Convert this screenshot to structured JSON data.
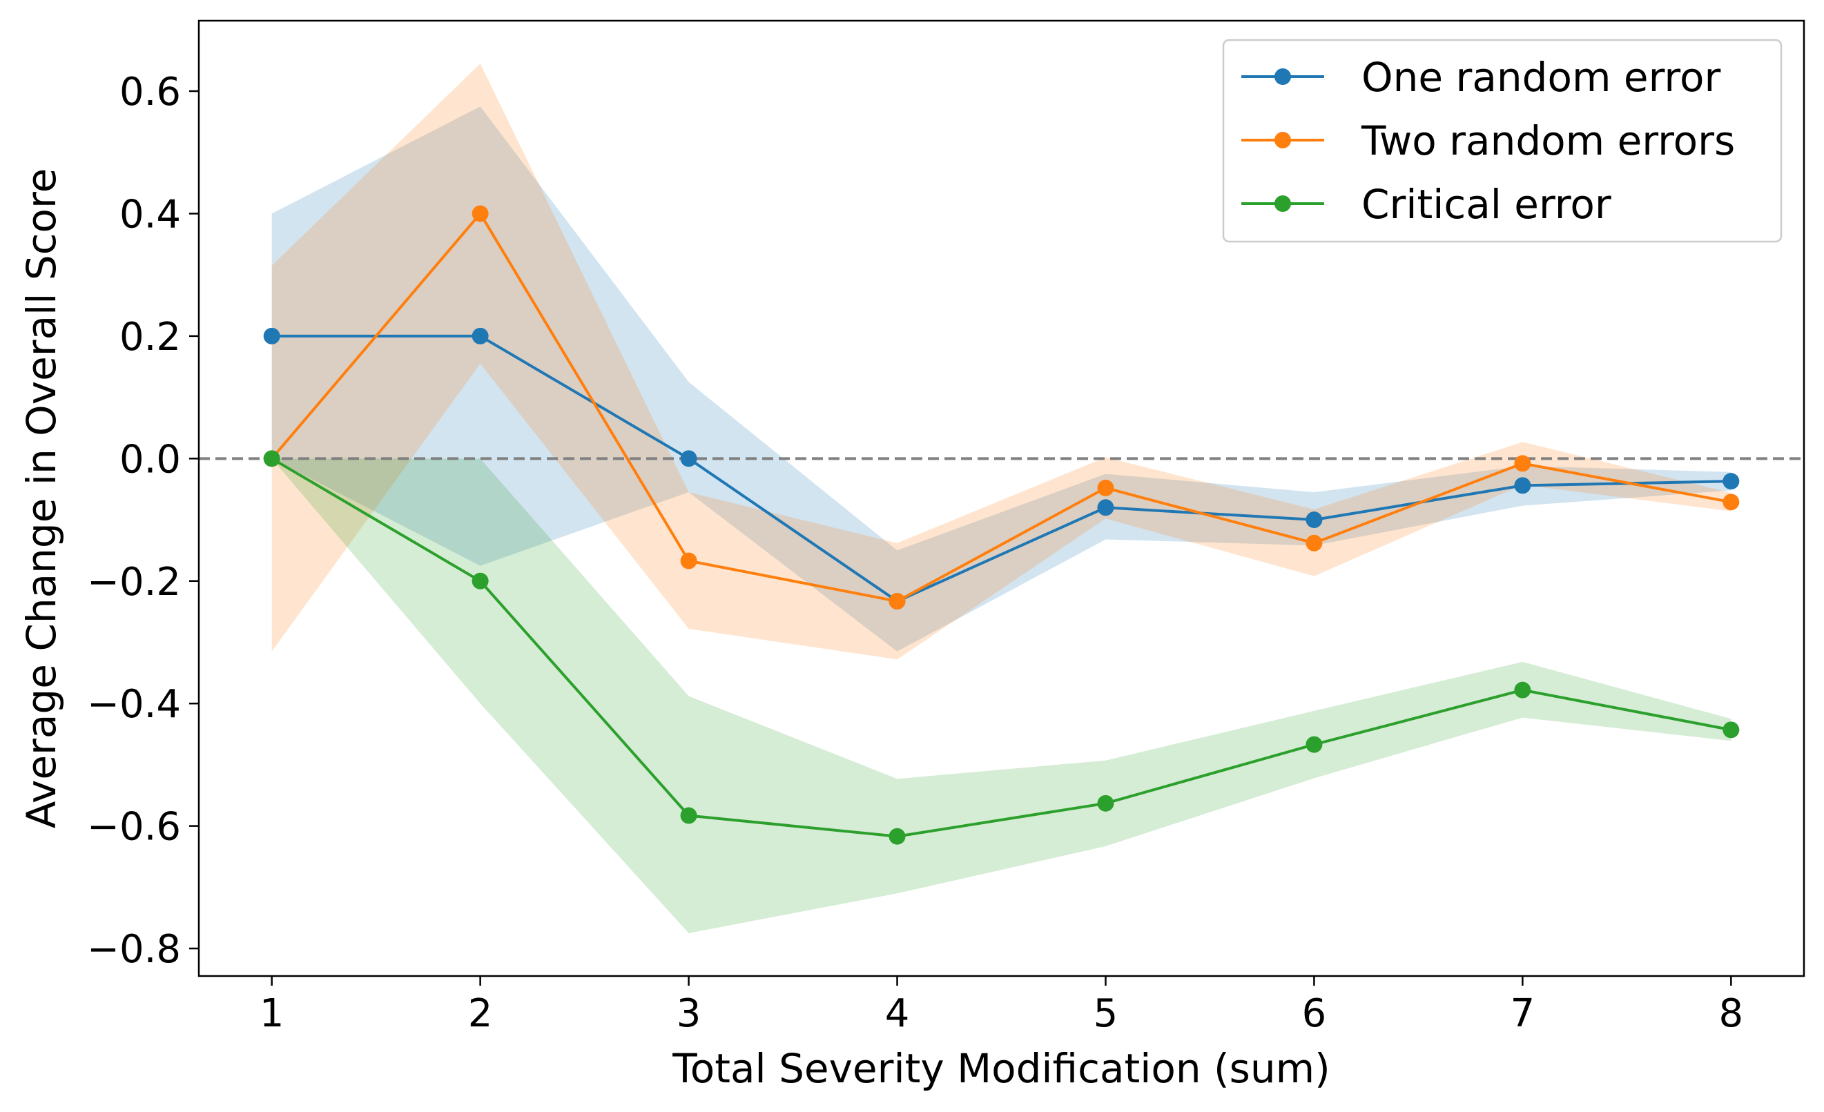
{
  "chart_data": {
    "type": "line",
    "title": "",
    "xlabel": "Total Severity Modification (sum)",
    "ylabel": "Average Change in Overall Score",
    "x": [
      1,
      2,
      3,
      4,
      5,
      6,
      7,
      8
    ],
    "xlim": [
      0.65,
      8.35
    ],
    "ylim": [
      -0.845,
      0.715
    ],
    "xticks": [
      1,
      2,
      3,
      4,
      5,
      6,
      7,
      8
    ],
    "xtick_labels": [
      "1",
      "2",
      "3",
      "4",
      "5",
      "6",
      "7",
      "8"
    ],
    "yticks": [
      0.6,
      0.4,
      0.2,
      0.0,
      -0.2,
      -0.4,
      -0.6,
      -0.8
    ],
    "ytick_labels": [
      "0.6",
      "0.4",
      "0.2",
      "0.0",
      "−0.2",
      "−0.4",
      "−0.6",
      "−0.8"
    ],
    "grid": false,
    "legend_position": "top-right",
    "reference_line": {
      "y": 0.0,
      "style": "dashed",
      "color": "#808080"
    },
    "series": [
      {
        "name": "One random error",
        "color": "#1f77b4",
        "values": [
          0.2,
          0.2,
          0.0,
          -0.233,
          -0.08,
          -0.1,
          -0.044,
          -0.037
        ],
        "band_upper": [
          0.4,
          0.575,
          0.125,
          -0.15,
          -0.025,
          -0.055,
          -0.012,
          -0.022
        ],
        "band_lower": [
          0.0,
          -0.175,
          -0.055,
          -0.315,
          -0.132,
          -0.142,
          -0.077,
          -0.052
        ]
      },
      {
        "name": "Two random errors",
        "color": "#ff7f0e",
        "values": [
          0.0,
          0.4,
          -0.167,
          -0.233,
          -0.048,
          -0.138,
          -0.008,
          -0.071
        ],
        "band_upper": [
          0.315,
          0.645,
          -0.055,
          -0.138,
          0.002,
          -0.083,
          0.027,
          -0.056
        ],
        "band_lower": [
          -0.315,
          0.155,
          -0.278,
          -0.328,
          -0.098,
          -0.192,
          -0.043,
          -0.086
        ]
      },
      {
        "name": "Critical error",
        "color": "#2ca02c",
        "values": [
          0.0,
          -0.2,
          -0.583,
          -0.617,
          -0.563,
          -0.467,
          -0.378,
          -0.443
        ],
        "band_upper": [
          0.0,
          0.0,
          -0.388,
          -0.523,
          -0.493,
          -0.412,
          -0.332,
          -0.425
        ],
        "band_lower": [
          0.0,
          -0.4,
          -0.775,
          -0.71,
          -0.633,
          -0.522,
          -0.423,
          -0.461
        ]
      }
    ]
  }
}
